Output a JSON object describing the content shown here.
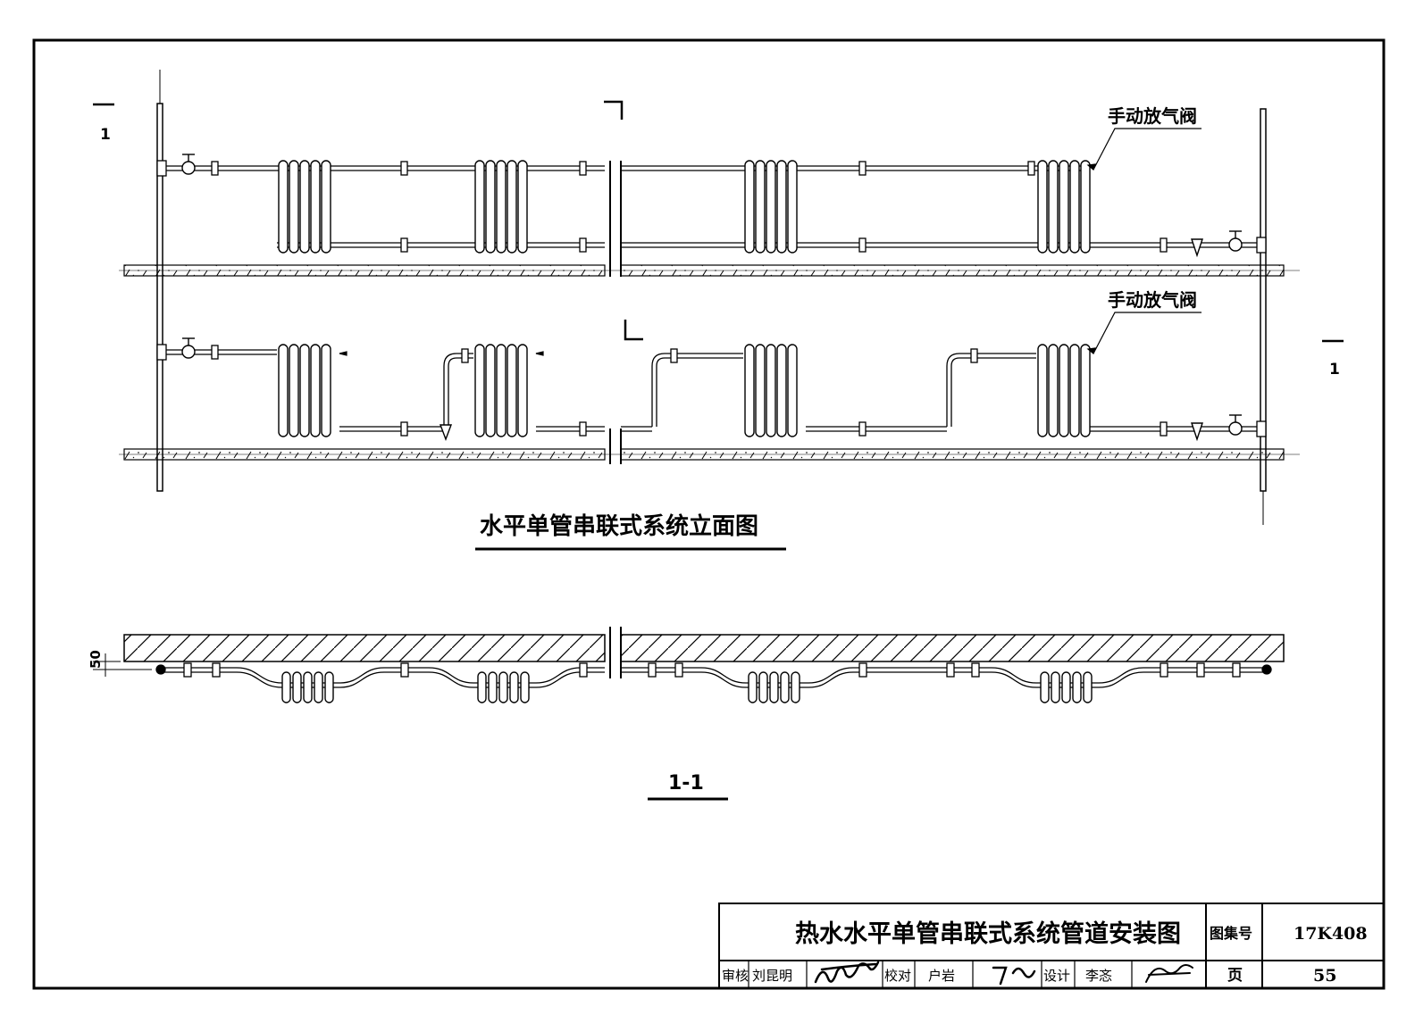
{
  "drawing": {
    "section_mark": "1",
    "valve_label": "手动放气阀",
    "elevation_title": "水平单管串联式系统立面图",
    "section_title": "1-1",
    "dimension": "50"
  },
  "title_block": {
    "title": "热水水平单管串联式系统管道安装图",
    "atlas_label": "图集号",
    "atlas_no": "17K408",
    "page_label": "页",
    "page_no": "55",
    "review_label": "审核",
    "reviewer": "刘昆明",
    "check_label": "校对",
    "checker": "户岩",
    "design_label": "设计",
    "designer": "李忞"
  }
}
